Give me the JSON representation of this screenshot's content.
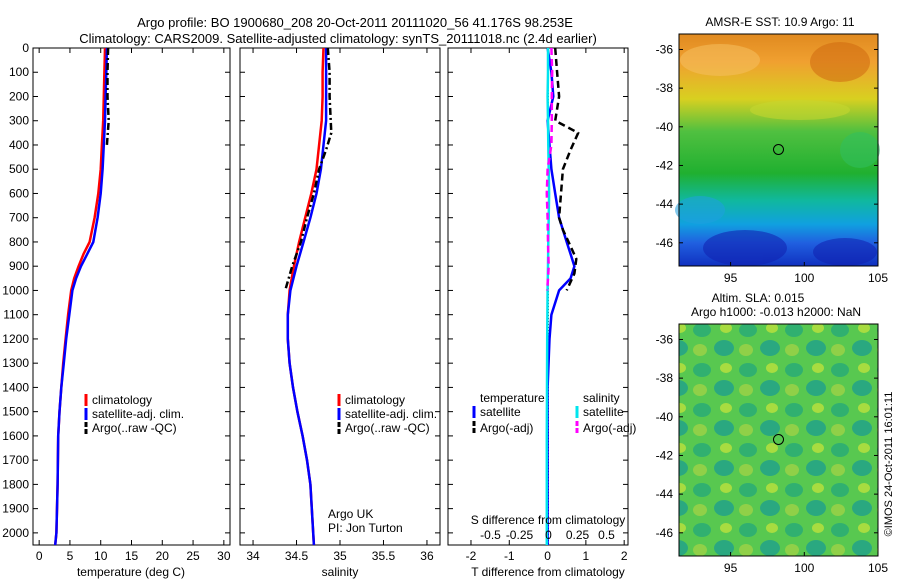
{
  "header": {
    "line1": "Argo profile: BO 1900680_208 20-Oct-2011 20111020_56 41.176S 98.253E",
    "line2": "Climatology: CARS2009. Satellite-adjusted climatology: synTS_20111018.nc (2.4d earlier)"
  },
  "colors": {
    "climatology": "#ff0000",
    "satellite": "#0000ff",
    "argo": "#000000",
    "s_satellite": "#00e5ee",
    "s_argo": "#ff00ff"
  },
  "chart_data": [
    {
      "type": "line",
      "id": "temperature",
      "xlabel": "temperature (deg C)",
      "xlim": [
        -1,
        31
      ],
      "ylim": [
        2050,
        0
      ],
      "xticks": [
        0,
        5,
        10,
        15,
        20,
        25,
        30
      ],
      "yticks": [
        0,
        100,
        200,
        300,
        400,
        500,
        600,
        700,
        800,
        900,
        1000,
        1100,
        1200,
        1300,
        1400,
        1500,
        1600,
        1700,
        1800,
        1900,
        2000
      ],
      "legend": {
        "position": "bottom-right",
        "entries": [
          "climatology",
          "satellite-adj. clim.",
          "Argo(..raw -QC)"
        ]
      },
      "series": [
        {
          "name": "climatology",
          "style": "solid",
          "x": [
            10.7,
            10.6,
            10.5,
            10.4,
            10.2,
            10.0,
            9.6,
            9.0,
            8.2,
            7.2,
            6.4,
            5.7,
            5.2,
            4.7,
            4.3,
            3.9,
            3.6,
            3.3,
            3.1,
            3.0,
            2.8,
            2.6
          ],
          "y": [
            0,
            100,
            200,
            300,
            400,
            500,
            600,
            700,
            800,
            850,
            900,
            950,
            1000,
            1100,
            1200,
            1300,
            1400,
            1500,
            1600,
            1800,
            2000,
            2050
          ]
        },
        {
          "name": "satellite-adj. clim.",
          "style": "solid",
          "x": [
            11.0,
            10.9,
            10.8,
            10.7,
            10.5,
            10.3,
            10.0,
            9.5,
            8.8,
            7.8,
            6.8,
            6.0,
            5.4,
            4.9,
            4.4,
            4.0,
            3.6,
            3.3,
            3.1,
            3.0,
            2.8,
            2.6
          ],
          "y": [
            0,
            100,
            200,
            300,
            400,
            500,
            600,
            700,
            800,
            850,
            900,
            950,
            1000,
            1100,
            1200,
            1300,
            1400,
            1500,
            1600,
            1800,
            2000,
            2050
          ]
        },
        {
          "name": "Argo(..raw -QC)",
          "style": "dashdot",
          "x": [
            11.2,
            11.1,
            11.1,
            11.3,
            11.0
          ],
          "y": [
            0,
            100,
            200,
            300,
            400
          ]
        }
      ]
    },
    {
      "type": "line",
      "id": "salinity",
      "xlabel": "salinity",
      "xlim": [
        33.85,
        36.15
      ],
      "ylim": [
        2050,
        0
      ],
      "xticks": [
        34,
        34.5,
        35,
        35.5,
        36
      ],
      "xticklabels": [
        "34",
        "34.5",
        "35",
        "35.5",
        "36"
      ],
      "legend": {
        "position": "bottom-right",
        "entries": [
          "climatology",
          "satellite-adj. clim.",
          "Argo(..raw -QC)"
        ]
      },
      "annotation": [
        "Argo UK",
        "PI: Jon Turton"
      ],
      "series": [
        {
          "name": "climatology",
          "style": "solid",
          "x": [
            34.81,
            34.8,
            34.8,
            34.79,
            34.76,
            34.73,
            34.67,
            34.6,
            34.53,
            34.47,
            34.42,
            34.4,
            34.4,
            34.42,
            34.46,
            34.51,
            34.57,
            34.62,
            34.66,
            34.7
          ],
          "y": [
            0,
            100,
            200,
            300,
            400,
            500,
            600,
            700,
            800,
            900,
            1000,
            1100,
            1200,
            1300,
            1400,
            1500,
            1600,
            1700,
            1800,
            2050
          ]
        },
        {
          "name": "satellite-adj. clim.",
          "style": "solid",
          "x": [
            34.84,
            34.84,
            34.84,
            34.84,
            34.81,
            34.78,
            34.73,
            34.66,
            34.58,
            34.5,
            34.43,
            34.4,
            34.4,
            34.42,
            34.46,
            34.51,
            34.57,
            34.62,
            34.66,
            34.7
          ],
          "y": [
            0,
            100,
            200,
            300,
            400,
            500,
            600,
            700,
            800,
            900,
            1000,
            1100,
            1200,
            1300,
            1400,
            1500,
            1600,
            1700,
            1800,
            2050
          ]
        },
        {
          "name": "Argo(..raw -QC)",
          "style": "dashdot",
          "x": [
            34.86,
            34.88,
            34.88,
            34.9,
            34.84,
            34.76,
            34.7,
            34.62,
            34.55,
            34.45,
            34.37
          ],
          "y": [
            0,
            100,
            200,
            350,
            420,
            500,
            600,
            700,
            800,
            900,
            1000
          ]
        }
      ]
    },
    {
      "type": "line",
      "id": "difference",
      "xlabel": "T difference from climatology",
      "xlabel2": "S difference from climatology",
      "xlim": [
        -2.6,
        2.1
      ],
      "ylim": [
        2050,
        0
      ],
      "xticks": [
        -2,
        -1,
        0,
        1,
        2
      ],
      "xticklabels": [
        "-2",
        "-1",
        "0",
        "1",
        "2"
      ],
      "xticks2": [
        -0.5,
        -0.25,
        0,
        0.25,
        0.5
      ],
      "xticklabels2": [
        "-0.5",
        "-0.25",
        "0",
        "0.25",
        "0.5"
      ],
      "legend": {
        "position": "bottom",
        "groups": [
          {
            "title": "temperature",
            "entries": [
              "satellite",
              "Argo(-adj)"
            ]
          },
          {
            "title": "salinity",
            "entries": [
              "satellite",
              "Argo(-adj)"
            ]
          }
        ]
      },
      "series": [
        {
          "name": "temperature satellite",
          "style": "solid",
          "x": [
            0.0,
            0.1,
            0.15,
            0.0,
            0.05,
            0.1,
            0.2,
            0.3,
            0.4,
            0.5,
            0.6,
            0.7,
            0.6,
            0.3,
            0.1,
            0.05,
            0.0,
            0.0
          ],
          "y": [
            0,
            100,
            200,
            300,
            400,
            500,
            600,
            700,
            750,
            800,
            850,
            900,
            950,
            1000,
            1100,
            1200,
            1400,
            2050
          ]
        },
        {
          "name": "temperature Argo(-adj)",
          "style": "dashed",
          "x": [
            0.2,
            0.25,
            0.3,
            0.2,
            0.8,
            0.6,
            0.4,
            0.35,
            0.3,
            0.4,
            0.55,
            0.75,
            0.7,
            0.5
          ],
          "y": [
            0,
            100,
            200,
            300,
            350,
            420,
            500,
            600,
            700,
            750,
            800,
            870,
            930,
            1000
          ]
        },
        {
          "name": "salinity satellite",
          "style": "solid",
          "x": [
            0.01,
            0.01,
            0.0,
            0.01,
            0.02,
            0.03,
            0.04,
            0.03,
            0.02,
            0.01,
            0.0,
            -0.01,
            -0.02,
            -0.02
          ],
          "y": [
            0,
            100,
            200,
            300,
            400,
            500,
            600,
            700,
            800,
            900,
            1000,
            1200,
            1600,
            2050
          ]
        },
        {
          "name": "salinity Argo(-adj)",
          "style": "dashed",
          "x": [
            0.1,
            0.12,
            0.11,
            0.11,
            0.1,
            0.0,
            -0.02,
            0.0,
            0.01,
            0.02,
            0.03,
            0.01,
            -0.01
          ],
          "y": [
            0,
            100,
            200,
            300,
            400,
            500,
            600,
            700,
            800,
            850,
            900,
            950,
            1000
          ]
        }
      ]
    },
    {
      "type": "heatmap",
      "id": "sst_map",
      "title": "AMSR-E SST: 10.9 Argo: 11",
      "xlim": [
        91.5,
        105
      ],
      "ylim": [
        -47.2,
        -35.2
      ],
      "xticks": [
        95,
        100,
        105
      ],
      "yticks": [
        -36,
        -38,
        -40,
        -42,
        -44,
        -46
      ],
      "marker": {
        "lon": 98.253,
        "lat": -41.176
      }
    },
    {
      "type": "heatmap",
      "id": "sla_map",
      "title_line1": "Altim. SLA: 0.015",
      "title_line2": "Argo h1000: -0.013 h2000: NaN",
      "xlim": [
        91.5,
        105
      ],
      "ylim": [
        -47.2,
        -35.2
      ],
      "xticks": [
        95,
        100,
        105
      ],
      "yticks": [
        -36,
        -38,
        -40,
        -42,
        -44,
        -46
      ],
      "marker": {
        "lon": 98.253,
        "lat": -41.176
      }
    }
  ],
  "footer": {
    "credit": "©IMOS 24-Oct-2011 16:01:11"
  }
}
